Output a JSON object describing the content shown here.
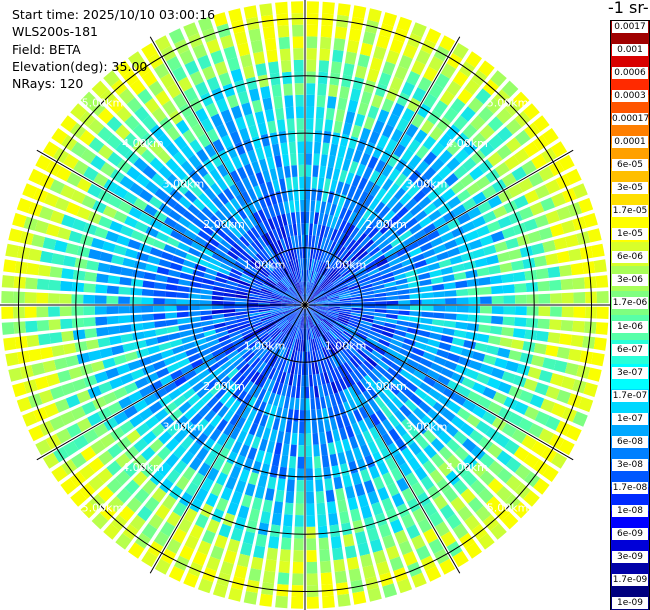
{
  "header": {
    "start_time": "Start time: 2025/10/10 03:00:16",
    "instrument": "WLS200s-181",
    "field": "Field: BETA",
    "elevation": "Elevation(deg): 35.00",
    "nrays": "NRays: 120"
  },
  "colorbar": {
    "title": "-1 sr-",
    "labels": [
      "0.0017",
      "0.001",
      "0.0006",
      "0.0003",
      "0.00017",
      "0.0001",
      "6e-05",
      "3e-05",
      "1.7e-05",
      "1e-05",
      "6e-06",
      "3e-06",
      "1.7e-06",
      "1e-06",
      "6e-07",
      "3e-07",
      "1.7e-07",
      "1e-07",
      "6e-08",
      "3e-08",
      "1.7e-08",
      "1e-08",
      "6e-09",
      "3e-09",
      "1.7e-09",
      "1e-09"
    ],
    "colors": [
      "#a00000",
      "#d80000",
      "#ff2a00",
      "#ff5500",
      "#ff7f00",
      "#ffa000",
      "#ffbf00",
      "#ffdf00",
      "#ffff00",
      "#d8ff2a",
      "#a8ff58",
      "#7fff80",
      "#58ffa8",
      "#2affd8",
      "#00ffff",
      "#00d8ff",
      "#00a8ff",
      "#0080ff",
      "#0058ff",
      "#002aff",
      "#0000ff",
      "#0000d8",
      "#0000a8",
      "#00007f"
    ]
  },
  "map_data": {
    "n_rays": 120,
    "range_rings_km": [
      1,
      2,
      3,
      4,
      5
    ],
    "ring_labels": [
      "1.00km",
      "2.00km",
      "3.00km",
      "4.00km",
      "5.00km"
    ],
    "max_range_km": 5.3,
    "spoke_interval_deg": 30
  }
}
